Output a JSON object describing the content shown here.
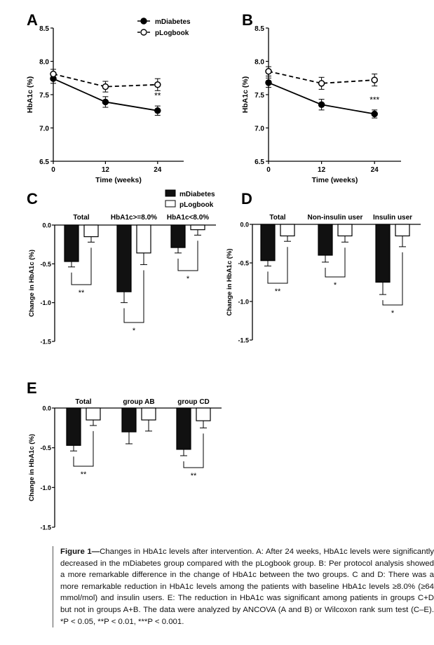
{
  "chart_data": [
    {
      "type": "line",
      "panel": "A",
      "ylabel": "HbA1c (%)",
      "xlabel": "Time (weeks)",
      "x": [
        0,
        12,
        24
      ],
      "xticks": [
        "0",
        "12",
        "24"
      ],
      "ylim": [
        6.5,
        8.5
      ],
      "yticks": [
        "6.5",
        "7.0",
        "7.5",
        "8.0",
        "8.5"
      ],
      "legend": "top-right",
      "series": [
        {
          "name": "mDiabetes",
          "values": [
            7.74,
            7.39,
            7.26
          ],
          "err": [
            0.07,
            0.08,
            0.07
          ],
          "style": "solid",
          "marker": "filled"
        },
        {
          "name": "pLogbook",
          "values": [
            7.81,
            7.62,
            7.65
          ],
          "err": [
            0.07,
            0.08,
            0.09
          ],
          "style": "dashed",
          "marker": "open"
        }
      ],
      "annotations": [
        {
          "x": 24,
          "y": 7.44,
          "text": "**"
        }
      ]
    },
    {
      "type": "line",
      "panel": "B",
      "ylabel": "HbA1c (%)",
      "xlabel": "Time (weeks)",
      "x": [
        0,
        12,
        24
      ],
      "xticks": [
        "0",
        "12",
        "24"
      ],
      "ylim": [
        6.5,
        8.5
      ],
      "yticks": [
        "6.5",
        "7.0",
        "7.5",
        "8.0",
        "8.5"
      ],
      "series": [
        {
          "name": "mDiabetes",
          "values": [
            7.68,
            7.35,
            7.21
          ],
          "err": [
            0.07,
            0.08,
            0.06
          ],
          "style": "solid",
          "marker": "filled"
        },
        {
          "name": "pLogbook",
          "values": [
            7.85,
            7.67,
            7.72
          ],
          "err": [
            0.07,
            0.09,
            0.09
          ],
          "style": "dashed",
          "marker": "open"
        }
      ],
      "annotations": [
        {
          "x": 24,
          "y": 7.38,
          "text": "***"
        }
      ]
    },
    {
      "type": "bar",
      "panel": "C",
      "ylabel": "Change in HbA1c (%)",
      "categories": [
        "Total",
        "HbA1c>=8.0%",
        "HbA1c<8.0%"
      ],
      "ylim": [
        -1.5,
        0.0
      ],
      "yticks": [
        "-1.5",
        "-1.0",
        "-0.5",
        "0.0"
      ],
      "legend": "top-right",
      "series": [
        {
          "name": "mDiabetes",
          "values": [
            -0.47,
            -0.86,
            -0.29
          ],
          "err": [
            0.07,
            0.14,
            0.07
          ],
          "fill": "#111111"
        },
        {
          "name": "pLogbook",
          "values": [
            -0.15,
            -0.36,
            -0.06
          ],
          "err": [
            0.07,
            0.15,
            0.07
          ],
          "fill": "#ffffff"
        }
      ],
      "significance": [
        "**",
        "*",
        "*"
      ]
    },
    {
      "type": "bar",
      "panel": "D",
      "ylabel": "Change in HbA1c (%)",
      "categories": [
        "Total",
        "Non-insulin user",
        "Insulin user"
      ],
      "ylim": [
        -1.5,
        0.0
      ],
      "yticks": [
        "-1.5",
        "-1.0",
        "-0.5",
        "0.0"
      ],
      "series": [
        {
          "name": "mDiabetes",
          "values": [
            -0.47,
            -0.4,
            -0.75
          ],
          "err": [
            0.07,
            0.09,
            0.16
          ],
          "fill": "#111111"
        },
        {
          "name": "pLogbook",
          "values": [
            -0.15,
            -0.15,
            -0.15
          ],
          "err": [
            0.07,
            0.08,
            0.14
          ],
          "fill": "#ffffff"
        }
      ],
      "significance": [
        "**",
        "*",
        "*"
      ]
    },
    {
      "type": "bar",
      "panel": "E",
      "ylabel": "Change in HbA1c (%)",
      "categories": [
        "Total",
        "group AB",
        "group CD"
      ],
      "ylim": [
        -1.5,
        0.0
      ],
      "yticks": [
        "-1.5",
        "-1.0",
        "-0.5",
        "0.0"
      ],
      "series": [
        {
          "name": "mDiabetes",
          "values": [
            -0.47,
            -0.3,
            -0.52
          ],
          "err": [
            0.07,
            0.15,
            0.08
          ],
          "fill": "#111111"
        },
        {
          "name": "pLogbook",
          "values": [
            -0.15,
            -0.15,
            -0.16
          ],
          "err": [
            0.07,
            0.14,
            0.09
          ],
          "fill": "#ffffff"
        }
      ],
      "significance": [
        "**",
        "",
        "**"
      ]
    }
  ],
  "caption": {
    "lead": "Figure 1—",
    "text": "Changes in HbA1c levels after intervention. A: After 24 weeks, HbA1c levels were significantly decreased in the mDiabetes group compared with the pLogbook group. B: Per protocol analysis showed a more remarkable difference in the change of HbA1c between the two groups. C and D: There was a more remarkable reduction in HbA1c levels among the patients with baseline HbA1c levels ≥8.0% (≥64 mmol/mol) and insulin users. E: The reduction in HbA1c was significant among patients in groups C+D but not in groups A+B. The data were analyzed by ANCOVA (A and B) or Wilcoxon rank sum test (C–E). *P < 0.05, **P < 0.01, ***P < 0.001."
  }
}
